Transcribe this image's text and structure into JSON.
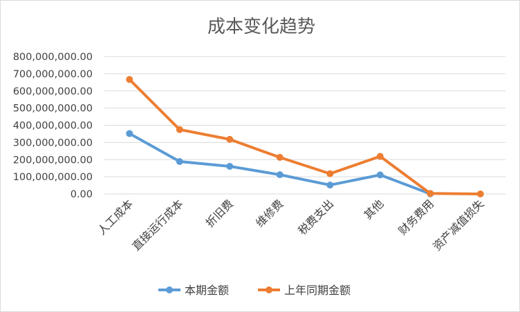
{
  "chart_data": {
    "type": "line",
    "title": "成本变化趋势",
    "xlabel": "",
    "ylabel": "",
    "ylim": [
      0,
      800000000
    ],
    "y_step": 100000000,
    "y_tick_labels": [
      "0.00",
      "100,000,000.00",
      "200,000,000.00",
      "300,000,000.00",
      "400,000,000.00",
      "500,000,000.00",
      "600,000,000.00",
      "700,000,000.00",
      "800,000,000.00"
    ],
    "categories": [
      "人工成本",
      "直接运行成本",
      "折旧费",
      "维修费",
      "税费支出",
      "其他",
      "财务费用",
      "资产减值损失"
    ],
    "series": [
      {
        "name": "本期金额",
        "color": "#5b9bd5",
        "values": [
          352000000,
          189000000,
          161000000,
          112000000,
          52000000,
          111000000,
          1000000,
          null
        ]
      },
      {
        "name": "上年同期金额",
        "color": "#ed7d31",
        "values": [
          667000000,
          375000000,
          318000000,
          213000000,
          118000000,
          219000000,
          3000000,
          0
        ]
      }
    ],
    "grid": true,
    "legend_position": "bottom"
  }
}
